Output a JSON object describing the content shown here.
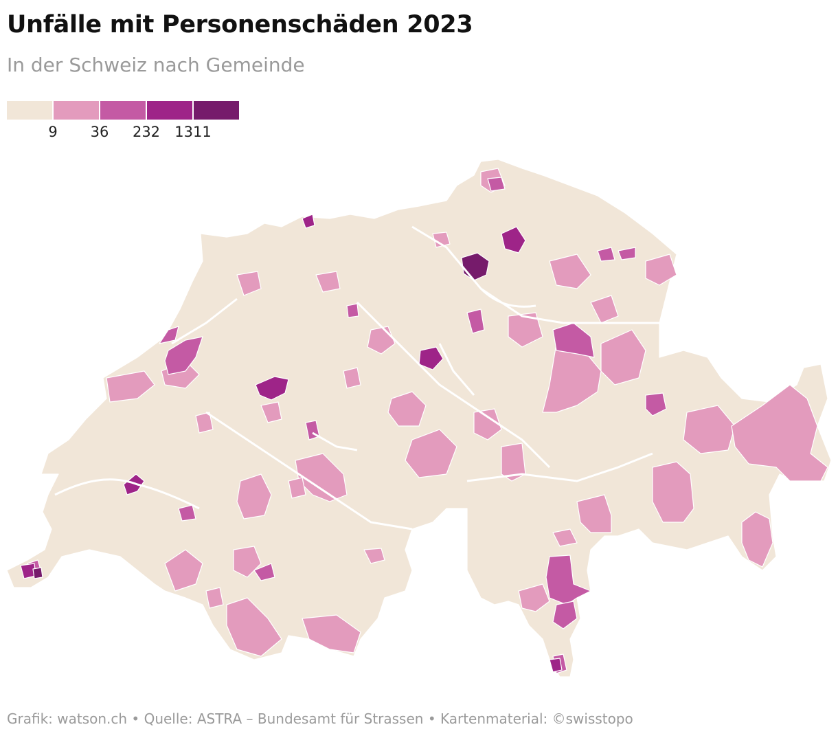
{
  "title": "Unfälle mit Personenschäden 2023",
  "subtitle": "In der Schweiz nach Gemeinde",
  "legend": {
    "classes": [
      {
        "color": "#f1e6d8",
        "label": ""
      },
      {
        "color": "#e39bbd",
        "label": "9"
      },
      {
        "color": "#c45aa4",
        "label": "36"
      },
      {
        "color": "#9e2488",
        "label": "232"
      },
      {
        "color": "#761b6b",
        "label": "1311"
      }
    ]
  },
  "footer": "Grafik: watson.ch • Quelle: ASTRA – Bundesamt für Strassen • Kartenmaterial: ©swisstopo",
  "colors": {
    "base": "#f1e6d8",
    "low": "#e39bbd",
    "mid": "#c45aa4",
    "high": "#9e2488",
    "top": "#761b6b",
    "border": "#ffffff"
  }
}
